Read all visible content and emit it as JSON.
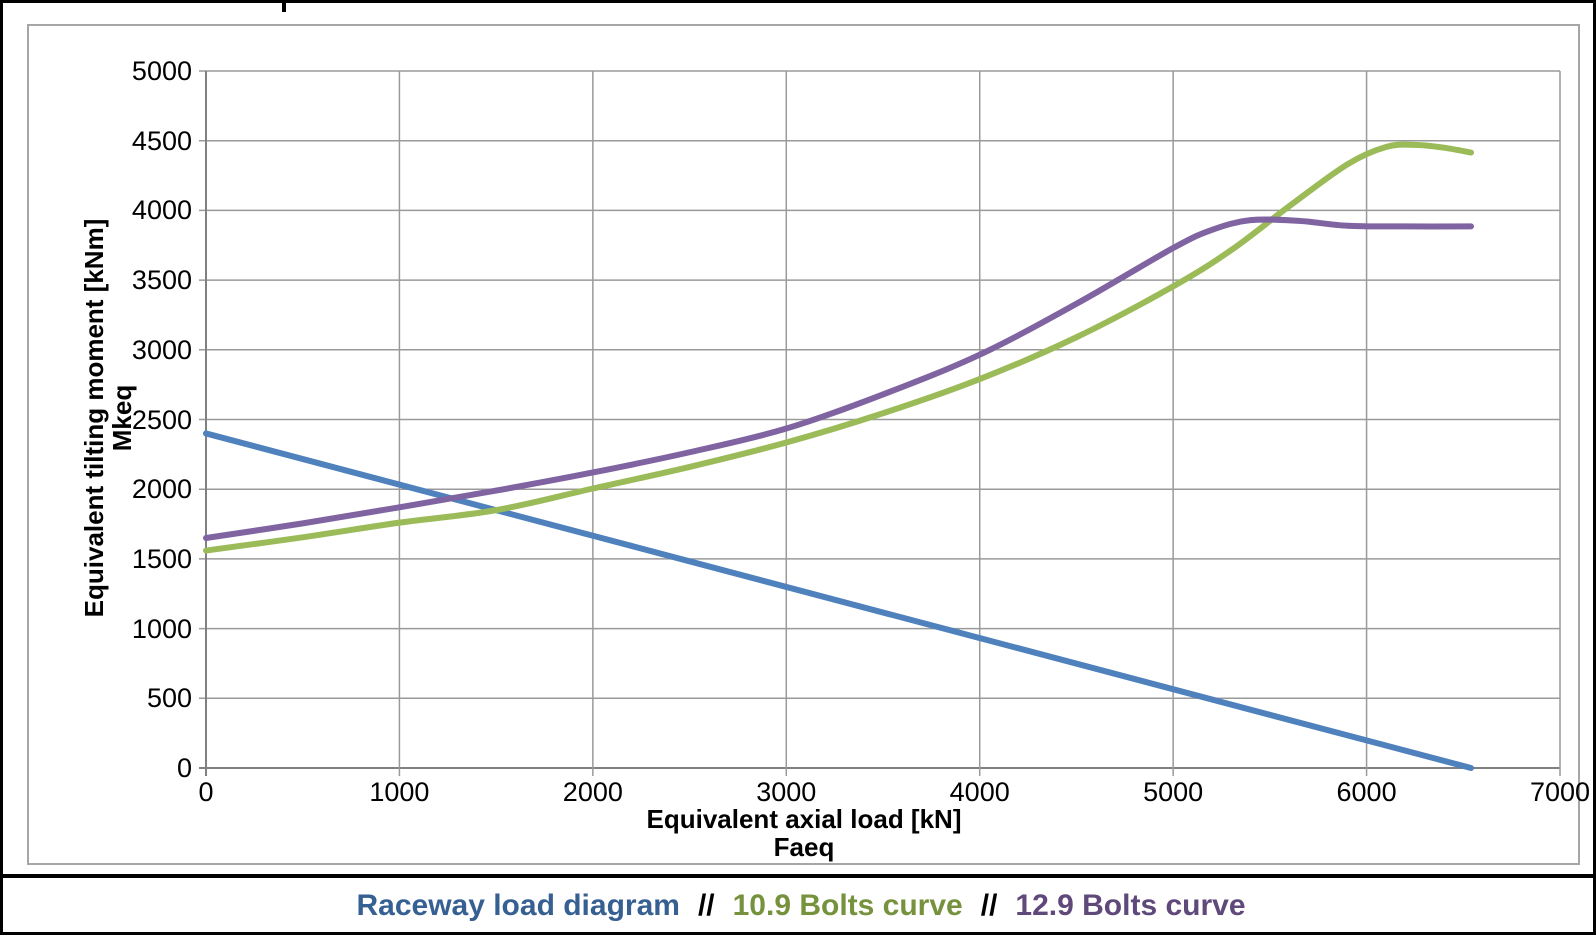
{
  "legend": {
    "parts": [
      {
        "text": "Raceway load diagram",
        "color": "#366092"
      },
      {
        "text": "//",
        "color": "#000000"
      },
      {
        "text": "10.9 Bolts curve",
        "color": "#76923C"
      },
      {
        "text": "//",
        "color": "#000000"
      },
      {
        "text": "12.9 Bolts curve",
        "color": "#5F497A"
      }
    ]
  },
  "chart_data": {
    "type": "line",
    "title": "",
    "xlabel": "Equivalent axial load [kN]",
    "xlabel_line2": "Faeq",
    "ylabel": "Equivalent tilting moment [kNm]",
    "ylabel_line2": "Mkeq",
    "xlim": [
      0,
      7000
    ],
    "ylim": [
      0,
      5000
    ],
    "x_ticks": [
      0,
      1000,
      2000,
      3000,
      4000,
      5000,
      6000,
      7000
    ],
    "y_ticks": [
      0,
      500,
      1000,
      1500,
      2000,
      2500,
      3000,
      3500,
      4000,
      4500,
      5000
    ],
    "grid": true,
    "legend_position": "bottom",
    "colors": {
      "gridline": "#9A9A9A",
      "axis": "#808080",
      "raceway": "#4F81BD",
      "bolts_10_9": "#9BBB59",
      "bolts_12_9": "#8064A2"
    },
    "series": [
      {
        "name": "Raceway load diagram",
        "color": "#4F81BD",
        "points": [
          [
            0,
            2400
          ],
          [
            6540,
            0
          ]
        ]
      },
      {
        "name": "10.9 Bolts curve",
        "color": "#9BBB59",
        "points": [
          [
            0,
            1560
          ],
          [
            500,
            1655
          ],
          [
            1000,
            1760
          ],
          [
            1500,
            1850
          ],
          [
            2000,
            2005
          ],
          [
            2500,
            2160
          ],
          [
            3000,
            2335
          ],
          [
            3500,
            2545
          ],
          [
            4000,
            2790
          ],
          [
            4500,
            3090
          ],
          [
            5000,
            3455
          ],
          [
            5300,
            3715
          ],
          [
            5600,
            4030
          ],
          [
            5900,
            4330
          ],
          [
            6100,
            4455
          ],
          [
            6250,
            4470
          ],
          [
            6400,
            4450
          ],
          [
            6540,
            4415
          ]
        ]
      },
      {
        "name": "12.9 Bolts curve",
        "color": "#8064A2",
        "points": [
          [
            0,
            1650
          ],
          [
            500,
            1755
          ],
          [
            1000,
            1870
          ],
          [
            1500,
            1990
          ],
          [
            2000,
            2120
          ],
          [
            2500,
            2265
          ],
          [
            3000,
            2435
          ],
          [
            3500,
            2680
          ],
          [
            4000,
            2965
          ],
          [
            4500,
            3330
          ],
          [
            5000,
            3730
          ],
          [
            5200,
            3860
          ],
          [
            5400,
            3930
          ],
          [
            5650,
            3925
          ],
          [
            5900,
            3890
          ],
          [
            6200,
            3885
          ],
          [
            6540,
            3885
          ]
        ]
      }
    ]
  }
}
